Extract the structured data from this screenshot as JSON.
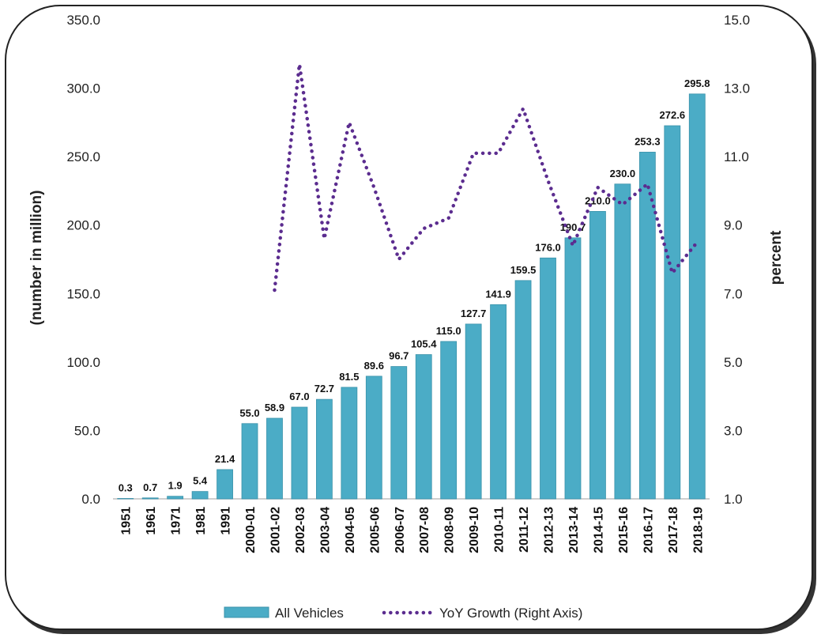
{
  "chart_data": {
    "type": "bar+line",
    "title": "",
    "categories": [
      "1951",
      "1961",
      "1971",
      "1981",
      "1991",
      "2000-01",
      "2001-02",
      "2002-03",
      "2003-04",
      "2004-05",
      "2005-06",
      "2006-07",
      "2007-08",
      "2008-09",
      "2009-10",
      "2010-11",
      "2011-12",
      "2012-13",
      "2013-14",
      "2014-15",
      "2015-16",
      "2016-17",
      "2017-18",
      "2018-19"
    ],
    "series": [
      {
        "name": "All Vehicles",
        "axis": "left",
        "kind": "bar",
        "values": [
          0.3,
          0.7,
          1.9,
          5.4,
          21.4,
          55.0,
          58.9,
          67.0,
          72.7,
          81.5,
          89.6,
          96.7,
          105.4,
          115.0,
          127.7,
          141.9,
          159.5,
          176.0,
          190.7,
          210.0,
          230.0,
          253.3,
          272.6,
          295.8
        ],
        "labels": [
          "0.3",
          "0.7",
          "1.9",
          "5.4",
          "21.4",
          "55.0",
          "58.9",
          "67.0",
          "72.7",
          "81.5",
          "89.6",
          "96.7",
          "105.4",
          "115.0",
          "127.7",
          "141.9",
          "159.5",
          "176.0",
          "190.7",
          "210.0",
          "230.0",
          "253.3",
          "272.6",
          "295.8"
        ],
        "color": "#4BACC6"
      },
      {
        "name": "YoY Growth (Right Axis)",
        "axis": "right",
        "kind": "line",
        "style": "dotted",
        "values": [
          null,
          null,
          null,
          null,
          null,
          null,
          7.1,
          13.7,
          8.6,
          12.0,
          10.1,
          8.0,
          8.9,
          9.2,
          11.1,
          11.1,
          12.4,
          10.3,
          8.4,
          10.1,
          9.6,
          10.2,
          7.6,
          8.5
        ],
        "color": "#5B2C8F"
      }
    ],
    "yleft": {
      "label": "(number in million)",
      "ylim": [
        0,
        350
      ],
      "ticks": [
        "0.0",
        "50.0",
        "100.0",
        "150.0",
        "200.0",
        "250.0",
        "300.0",
        "350.0"
      ]
    },
    "yright": {
      "label": "percent",
      "ylim": [
        1,
        15
      ],
      "ticks": [
        "1.0",
        "3.0",
        "5.0",
        "7.0",
        "9.0",
        "11.0",
        "13.0",
        "15.0"
      ]
    },
    "legend": {
      "position": "bottom",
      "entries": [
        "All Vehicles",
        "YoY Growth (Right Axis)"
      ]
    }
  }
}
